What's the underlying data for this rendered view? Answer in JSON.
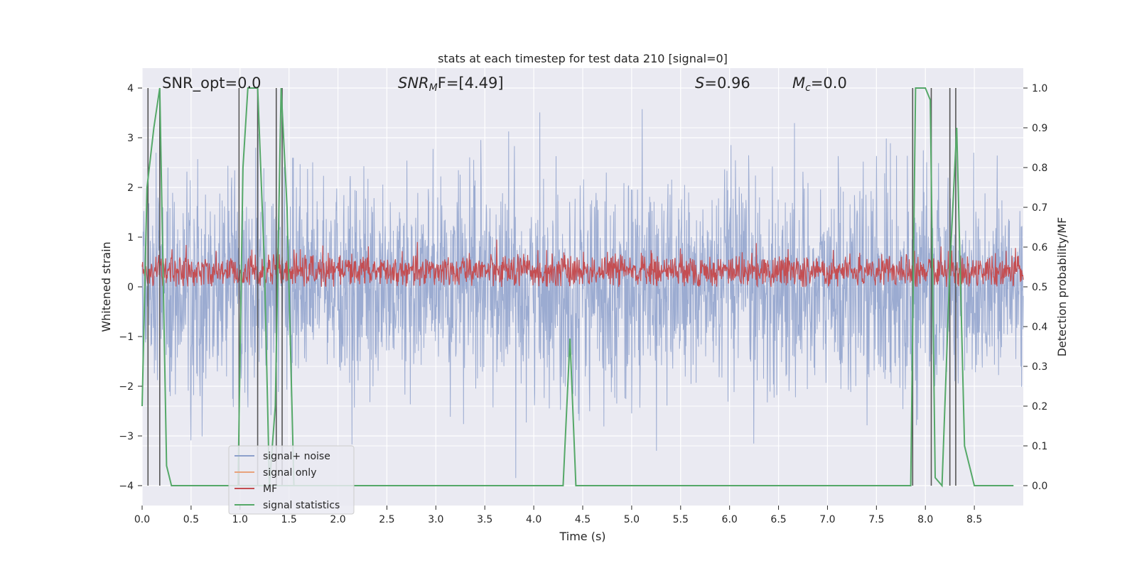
{
  "chart_data": {
    "type": "line",
    "title": "stats at each timestep for test data 210 [signal=0]",
    "xlabel": "Time (s)",
    "ylabel": "Whitened strain",
    "ylabel_right": "Detection probability/MF",
    "xlim": [
      0,
      9.0
    ],
    "ylim": [
      -4.4,
      4.4
    ],
    "ylim_right": [
      -0.05,
      1.05
    ],
    "xticks": [
      "0.0",
      "0.5",
      "1.0",
      "1.5",
      "2.0",
      "2.5",
      "3.0",
      "3.5",
      "4.0",
      "4.5",
      "5.0",
      "5.5",
      "6.0",
      "6.5",
      "7.0",
      "7.5",
      "8.0",
      "8.5"
    ],
    "yticks": [
      "−4",
      "−3",
      "−2",
      "−1",
      "0",
      "1",
      "2",
      "3",
      "4"
    ],
    "yticks_right": [
      "0.0",
      "0.1",
      "0.2",
      "0.3",
      "0.4",
      "0.5",
      "0.6",
      "0.7",
      "0.8",
      "0.9",
      "1.0"
    ],
    "grid": true,
    "legend_position": "lower-left",
    "annotations": {
      "snr_opt": "SNR_opt=0.0",
      "snr_mf_main": "SNR",
      "snr_mf_sub": "M",
      "snr_mf_rest": "F=[4.49]",
      "s_main": "S",
      "s_rest": "=0.96",
      "mc_main": "M",
      "mc_sub": "c",
      "mc_rest": "=0.0"
    },
    "series": [
      {
        "name": "signal+ noise",
        "color": "#8da0cb",
        "envelope": "noise, roughly ±1.6 with spikes up to ±3.7"
      },
      {
        "name": "signal only",
        "color": "#e8a27c",
        "values": []
      },
      {
        "name": "MF",
        "color": "#c44e52",
        "envelope": "0.50–0.60 on right axis"
      },
      {
        "name": "signal statistics",
        "color": "#55a868",
        "x": [
          0.0,
          0.05,
          0.12,
          0.18,
          0.25,
          0.3,
          4.3,
          4.37,
          4.43,
          7.85,
          7.9,
          7.95,
          8.0,
          8.05,
          8.1,
          8.17,
          8.25,
          8.32,
          8.4,
          8.5,
          8.9
        ],
        "y": [
          0.2,
          0.75,
          0.9,
          1.0,
          0.05,
          0.0,
          0.0,
          0.37,
          0.0,
          0.0,
          1.0,
          1.0,
          1.0,
          0.97,
          0.02,
          0.0,
          0.55,
          0.9,
          0.1,
          0.0,
          0.0
        ]
      }
    ],
    "extra_green_segments": [
      {
        "x": [
          0.98,
          1.03,
          1.08,
          1.12,
          1.18,
          1.25,
          1.3,
          1.36,
          1.42,
          1.48,
          1.55
        ],
        "y": [
          0.0,
          0.8,
          1.0,
          1.0,
          1.0,
          0.55,
          0.0,
          0.2,
          1.0,
          0.7,
          0.0
        ]
      }
    ],
    "vertical_lines_x": [
      0.06,
      0.18,
      0.99,
      1.18,
      1.37,
      1.43,
      7.87,
      8.06,
      8.25,
      8.31
    ]
  }
}
